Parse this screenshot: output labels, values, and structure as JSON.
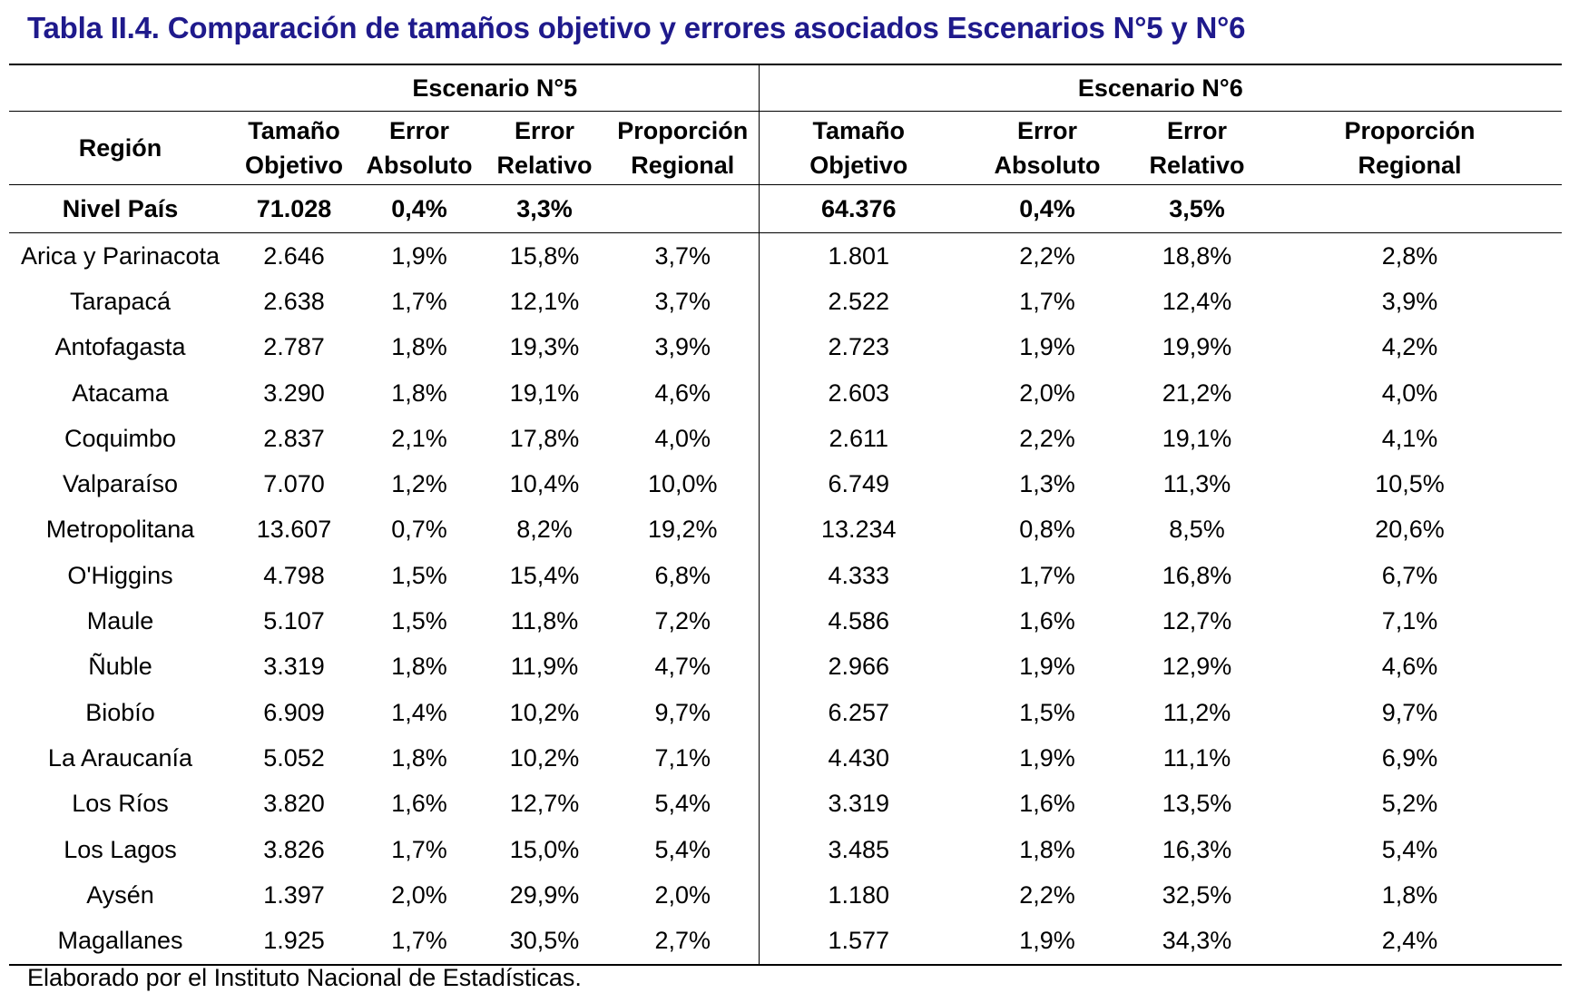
{
  "title": "Tabla II.4. Comparación de tamaños objetivo y errores asociados Escenarios N°5 y N°6",
  "header": {
    "scenario5": "Escenario N°5",
    "scenario6": "Escenario N°6",
    "region": "Región",
    "columns": [
      {
        "line1": "Tamaño",
        "line2": "Objetivo"
      },
      {
        "line1": "Error",
        "line2": "Absoluto"
      },
      {
        "line1": "Error",
        "line2": "Relativo"
      },
      {
        "line1": "Proporción",
        "line2": "Regional"
      }
    ]
  },
  "total": {
    "label": "Nivel País",
    "s5": [
      "71.028",
      "0,4%",
      "3,3%",
      ""
    ],
    "s6": [
      "64.376",
      "0,4%",
      "3,5%",
      ""
    ]
  },
  "rows": [
    {
      "region": "Arica y Parinacota",
      "s5": [
        "2.646",
        "1,9%",
        "15,8%",
        "3,7%"
      ],
      "s6": [
        "1.801",
        "2,2%",
        "18,8%",
        "2,8%"
      ]
    },
    {
      "region": "Tarapacá",
      "s5": [
        "2.638",
        "1,7%",
        "12,1%",
        "3,7%"
      ],
      "s6": [
        "2.522",
        "1,7%",
        "12,4%",
        "3,9%"
      ]
    },
    {
      "region": "Antofagasta",
      "s5": [
        "2.787",
        "1,8%",
        "19,3%",
        "3,9%"
      ],
      "s6": [
        "2.723",
        "1,9%",
        "19,9%",
        "4,2%"
      ]
    },
    {
      "region": "Atacama",
      "s5": [
        "3.290",
        "1,8%",
        "19,1%",
        "4,6%"
      ],
      "s6": [
        "2.603",
        "2,0%",
        "21,2%",
        "4,0%"
      ]
    },
    {
      "region": "Coquimbo",
      "s5": [
        "2.837",
        "2,1%",
        "17,8%",
        "4,0%"
      ],
      "s6": [
        "2.611",
        "2,2%",
        "19,1%",
        "4,1%"
      ]
    },
    {
      "region": "Valparaíso",
      "s5": [
        "7.070",
        "1,2%",
        "10,4%",
        "10,0%"
      ],
      "s6": [
        "6.749",
        "1,3%",
        "11,3%",
        "10,5%"
      ]
    },
    {
      "region": "Metropolitana",
      "s5": [
        "13.607",
        "0,7%",
        "8,2%",
        "19,2%"
      ],
      "s6": [
        "13.234",
        "0,8%",
        "8,5%",
        "20,6%"
      ]
    },
    {
      "region": "O'Higgins",
      "s5": [
        "4.798",
        "1,5%",
        "15,4%",
        "6,8%"
      ],
      "s6": [
        "4.333",
        "1,7%",
        "16,8%",
        "6,7%"
      ]
    },
    {
      "region": "Maule",
      "s5": [
        "5.107",
        "1,5%",
        "11,8%",
        "7,2%"
      ],
      "s6": [
        "4.586",
        "1,6%",
        "12,7%",
        "7,1%"
      ]
    },
    {
      "region": "Ñuble",
      "s5": [
        "3.319",
        "1,8%",
        "11,9%",
        "4,7%"
      ],
      "s6": [
        "2.966",
        "1,9%",
        "12,9%",
        "4,6%"
      ]
    },
    {
      "region": "Biobío",
      "s5": [
        "6.909",
        "1,4%",
        "10,2%",
        "9,7%"
      ],
      "s6": [
        "6.257",
        "1,5%",
        "11,2%",
        "9,7%"
      ]
    },
    {
      "region": "La Araucanía",
      "s5": [
        "5.052",
        "1,8%",
        "10,2%",
        "7,1%"
      ],
      "s6": [
        "4.430",
        "1,9%",
        "11,1%",
        "6,9%"
      ]
    },
    {
      "region": "Los Ríos",
      "s5": [
        "3.820",
        "1,6%",
        "12,7%",
        "5,4%"
      ],
      "s6": [
        "3.319",
        "1,6%",
        "13,5%",
        "5,2%"
      ]
    },
    {
      "region": "Los Lagos",
      "s5": [
        "3.826",
        "1,7%",
        "15,0%",
        "5,4%"
      ],
      "s6": [
        "3.485",
        "1,8%",
        "16,3%",
        "5,4%"
      ]
    },
    {
      "region": "Aysén",
      "s5": [
        "1.397",
        "2,0%",
        "29,9%",
        "2,0%"
      ],
      "s6": [
        "1.180",
        "2,2%",
        "32,5%",
        "1,8%"
      ]
    },
    {
      "region": "Magallanes",
      "s5": [
        "1.925",
        "1,7%",
        "30,5%",
        "2,7%"
      ],
      "s6": [
        "1.577",
        "1,9%",
        "34,3%",
        "2,4%"
      ]
    }
  ],
  "source": "Elaborado por el Instituto Nacional de Estadísticas.",
  "colors": {
    "title": "#1f1a8c",
    "text": "#000000",
    "background": "#ffffff"
  }
}
